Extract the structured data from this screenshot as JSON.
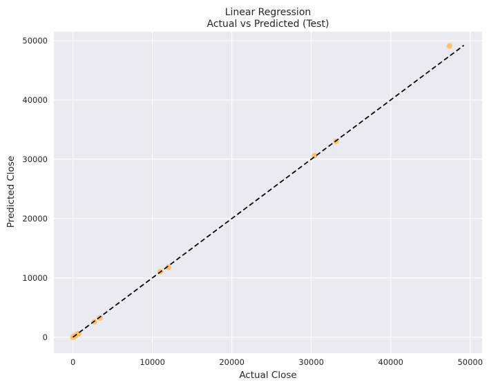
{
  "chart_data": {
    "type": "scatter",
    "title_line1": "Linear Regression",
    "title_line2": "Actual vs Predicted (Test)",
    "xlabel": "Actual Close",
    "ylabel": "Predicted Close",
    "xlim": [
      -2400,
      51500
    ],
    "ylim": [
      -2700,
      51500
    ],
    "xticks": [
      0,
      10000,
      20000,
      30000,
      40000,
      50000
    ],
    "yticks": [
      0,
      10000,
      20000,
      30000,
      40000,
      50000
    ],
    "xtick_labels": [
      "0",
      "10000",
      "20000",
      "30000",
      "40000",
      "50000"
    ],
    "ytick_labels": [
      "0",
      "10000",
      "20000",
      "30000",
      "40000",
      "50000"
    ],
    "grid": true,
    "background_color": "#eaeaf2",
    "grid_color": "#ffffff",
    "point_color": "#ffc158",
    "reference_line_color": "#000000",
    "reference_line": {
      "x": [
        0,
        49200
      ],
      "y": [
        0,
        49200
      ]
    },
    "points": [
      {
        "x": 0,
        "y": 0
      },
      {
        "x": 40,
        "y": 30
      },
      {
        "x": 80,
        "y": 60
      },
      {
        "x": 150,
        "y": 120
      },
      {
        "x": 250,
        "y": 220
      },
      {
        "x": 400,
        "y": 350
      },
      {
        "x": 700,
        "y": 600
      },
      {
        "x": 2700,
        "y": 2600
      },
      {
        "x": 3400,
        "y": 3250
      },
      {
        "x": 11000,
        "y": 11050
      },
      {
        "x": 12000,
        "y": 11800
      },
      {
        "x": 30400,
        "y": 30600
      },
      {
        "x": 33100,
        "y": 33000
      },
      {
        "x": 47400,
        "y": 49100
      }
    ]
  }
}
